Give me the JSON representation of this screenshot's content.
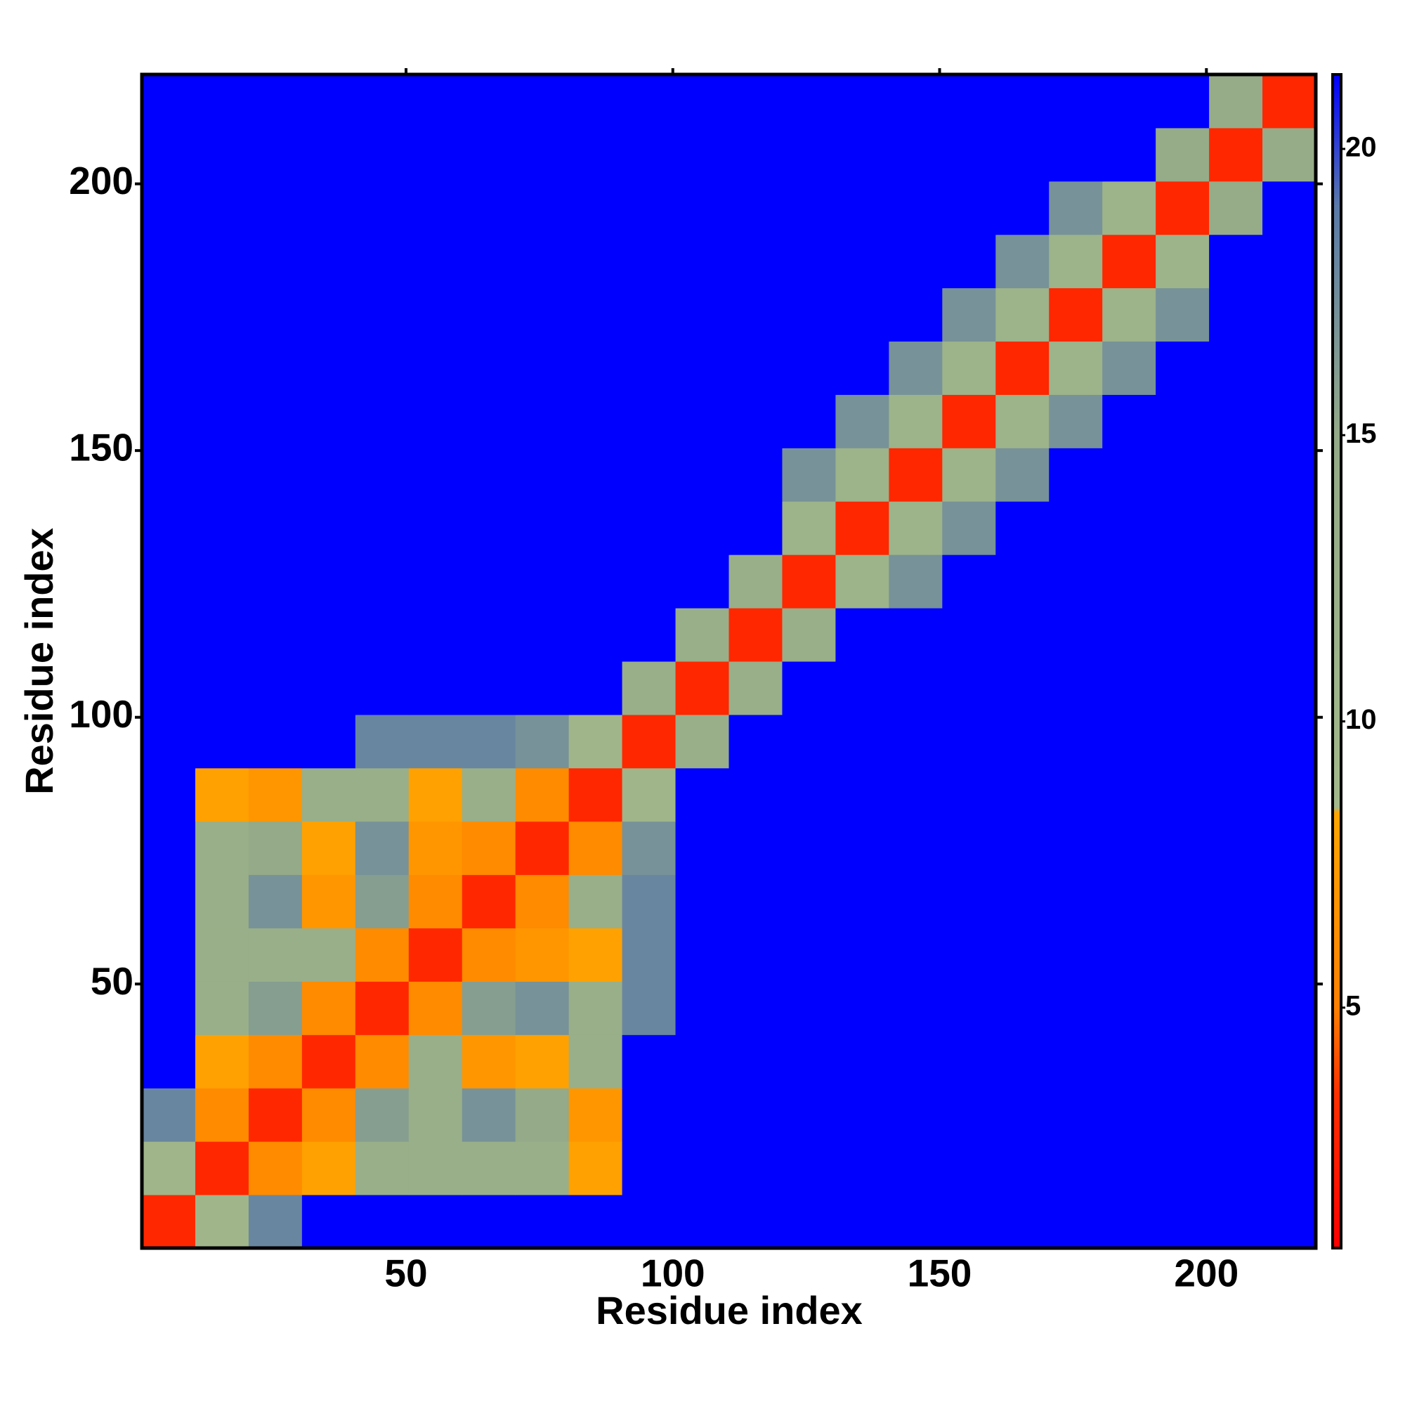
{
  "chart_data": {
    "type": "heatmap",
    "xlabel": "Residue index",
    "ylabel": "Residue index",
    "xlim": [
      0.5,
      220.5
    ],
    "ylim": [
      0.5,
      220.5
    ],
    "xticks": [
      50,
      100,
      150,
      200
    ],
    "yticks": [
      50,
      100,
      150,
      200
    ],
    "xbins": [
      0.5,
      10.5,
      20.5,
      30.5,
      40.5,
      50.5,
      60.5,
      70.5,
      80.5,
      90.5,
      100.5,
      110.5,
      120.5,
      130.5,
      140.5,
      150.5,
      160.5,
      170.5,
      180.5,
      190.5,
      200.5,
      210.5,
      220.5
    ],
    "ybins": [
      0.5,
      10.5,
      20.5,
      30.5,
      40.5,
      50.5,
      60.5,
      70.5,
      80.5,
      90.5,
      100.5,
      110.5,
      120.5,
      130.5,
      140.5,
      150.5,
      160.5,
      170.5,
      180.5,
      190.5,
      200.5,
      210.5,
      220.5
    ],
    "zlim": [
      0.8,
      21.3
    ],
    "zticks": [
      5,
      10,
      15,
      20
    ],
    "colorscale": [
      [
        0.8,
        "#ff0000"
      ],
      [
        3.5,
        "#ff3000"
      ],
      [
        5,
        "#ff8000"
      ],
      [
        8.4,
        "#ffa500"
      ],
      [
        8.5,
        "#a3b98b"
      ],
      [
        15,
        "#94aa88"
      ],
      [
        19,
        "#5a7aa8"
      ],
      [
        21.3,
        "#0000ff"
      ]
    ],
    "z": [
      [
        3,
        10,
        18,
        22,
        22,
        22,
        22,
        22,
        22,
        22,
        22,
        22,
        22,
        22,
        22,
        22,
        22,
        22,
        22,
        22,
        22,
        22
      ],
      [
        10,
        3,
        6,
        8,
        13,
        13,
        13,
        13,
        8,
        22,
        22,
        22,
        22,
        22,
        22,
        22,
        22,
        22,
        22,
        22,
        22,
        22
      ],
      [
        18,
        6,
        3,
        6,
        16,
        13,
        17,
        15,
        7,
        22,
        22,
        22,
        22,
        22,
        22,
        22,
        22,
        22,
        22,
        22,
        22,
        22
      ],
      [
        22,
        8,
        6,
        3,
        6,
        13,
        7,
        8,
        13,
        22,
        22,
        22,
        22,
        22,
        22,
        22,
        22,
        22,
        22,
        22,
        22,
        22
      ],
      [
        22,
        13,
        16,
        6,
        3,
        6,
        16,
        17,
        13,
        18,
        22,
        22,
        22,
        22,
        22,
        22,
        22,
        22,
        22,
        22,
        22,
        22
      ],
      [
        22,
        13,
        13,
        13,
        6,
        3,
        6,
        7,
        8,
        18,
        22,
        22,
        22,
        22,
        22,
        22,
        22,
        22,
        22,
        22,
        22,
        22
      ],
      [
        22,
        13,
        17,
        7,
        16,
        6,
        3,
        6,
        13,
        18,
        22,
        22,
        22,
        22,
        22,
        22,
        22,
        22,
        22,
        22,
        22,
        22
      ],
      [
        22,
        13,
        15,
        8,
        17,
        7,
        6,
        3,
        6,
        17,
        22,
        22,
        22,
        22,
        22,
        22,
        22,
        22,
        22,
        22,
        22,
        22
      ],
      [
        22,
        8,
        7,
        13,
        13,
        8,
        13,
        6,
        3,
        10,
        22,
        22,
        22,
        22,
        22,
        22,
        22,
        22,
        22,
        22,
        22,
        22
      ],
      [
        22,
        22,
        22,
        22,
        18,
        18,
        18,
        17,
        10,
        3,
        13,
        22,
        22,
        22,
        22,
        22,
        22,
        22,
        22,
        22,
        22,
        22
      ],
      [
        22,
        22,
        22,
        22,
        22,
        22,
        22,
        22,
        22,
        13,
        3,
        13,
        22,
        22,
        22,
        22,
        22,
        22,
        22,
        22,
        22,
        22
      ],
      [
        22,
        22,
        22,
        22,
        22,
        22,
        22,
        22,
        22,
        22,
        13,
        3,
        13,
        22,
        22,
        22,
        22,
        22,
        22,
        22,
        22,
        22
      ],
      [
        22,
        22,
        22,
        22,
        22,
        22,
        22,
        22,
        22,
        22,
        22,
        13,
        3,
        11,
        17,
        22,
        22,
        22,
        22,
        22,
        22,
        22
      ],
      [
        22,
        22,
        22,
        22,
        22,
        22,
        22,
        22,
        22,
        22,
        22,
        22,
        11,
        3,
        11,
        17,
        22,
        22,
        22,
        22,
        22,
        22
      ],
      [
        22,
        22,
        22,
        22,
        22,
        22,
        22,
        22,
        22,
        22,
        22,
        22,
        17,
        11,
        3,
        11,
        17,
        22,
        22,
        22,
        22,
        22
      ],
      [
        22,
        22,
        22,
        22,
        22,
        22,
        22,
        22,
        22,
        22,
        22,
        22,
        22,
        17,
        11,
        3,
        11,
        17,
        22,
        22,
        22,
        22
      ],
      [
        22,
        22,
        22,
        22,
        22,
        22,
        22,
        22,
        22,
        22,
        22,
        22,
        22,
        22,
        17,
        11,
        3,
        11,
        17,
        22,
        22,
        22
      ],
      [
        22,
        22,
        22,
        22,
        22,
        22,
        22,
        22,
        22,
        22,
        22,
        22,
        22,
        22,
        22,
        17,
        11,
        3,
        11,
        17,
        22,
        22
      ],
      [
        22,
        22,
        22,
        22,
        22,
        22,
        22,
        22,
        22,
        22,
        22,
        22,
        22,
        22,
        22,
        22,
        17,
        11,
        3,
        11,
        22,
        22
      ],
      [
        22,
        22,
        22,
        22,
        22,
        22,
        22,
        22,
        22,
        22,
        22,
        22,
        22,
        22,
        22,
        22,
        22,
        17,
        11,
        3,
        14,
        22
      ],
      [
        22,
        22,
        22,
        22,
        22,
        22,
        22,
        22,
        22,
        22,
        22,
        22,
        22,
        22,
        22,
        22,
        22,
        22,
        22,
        14,
        3,
        14
      ],
      [
        22,
        22,
        22,
        22,
        22,
        22,
        22,
        22,
        22,
        22,
        22,
        22,
        22,
        22,
        22,
        22,
        22,
        22,
        22,
        22,
        14,
        3
      ]
    ]
  }
}
